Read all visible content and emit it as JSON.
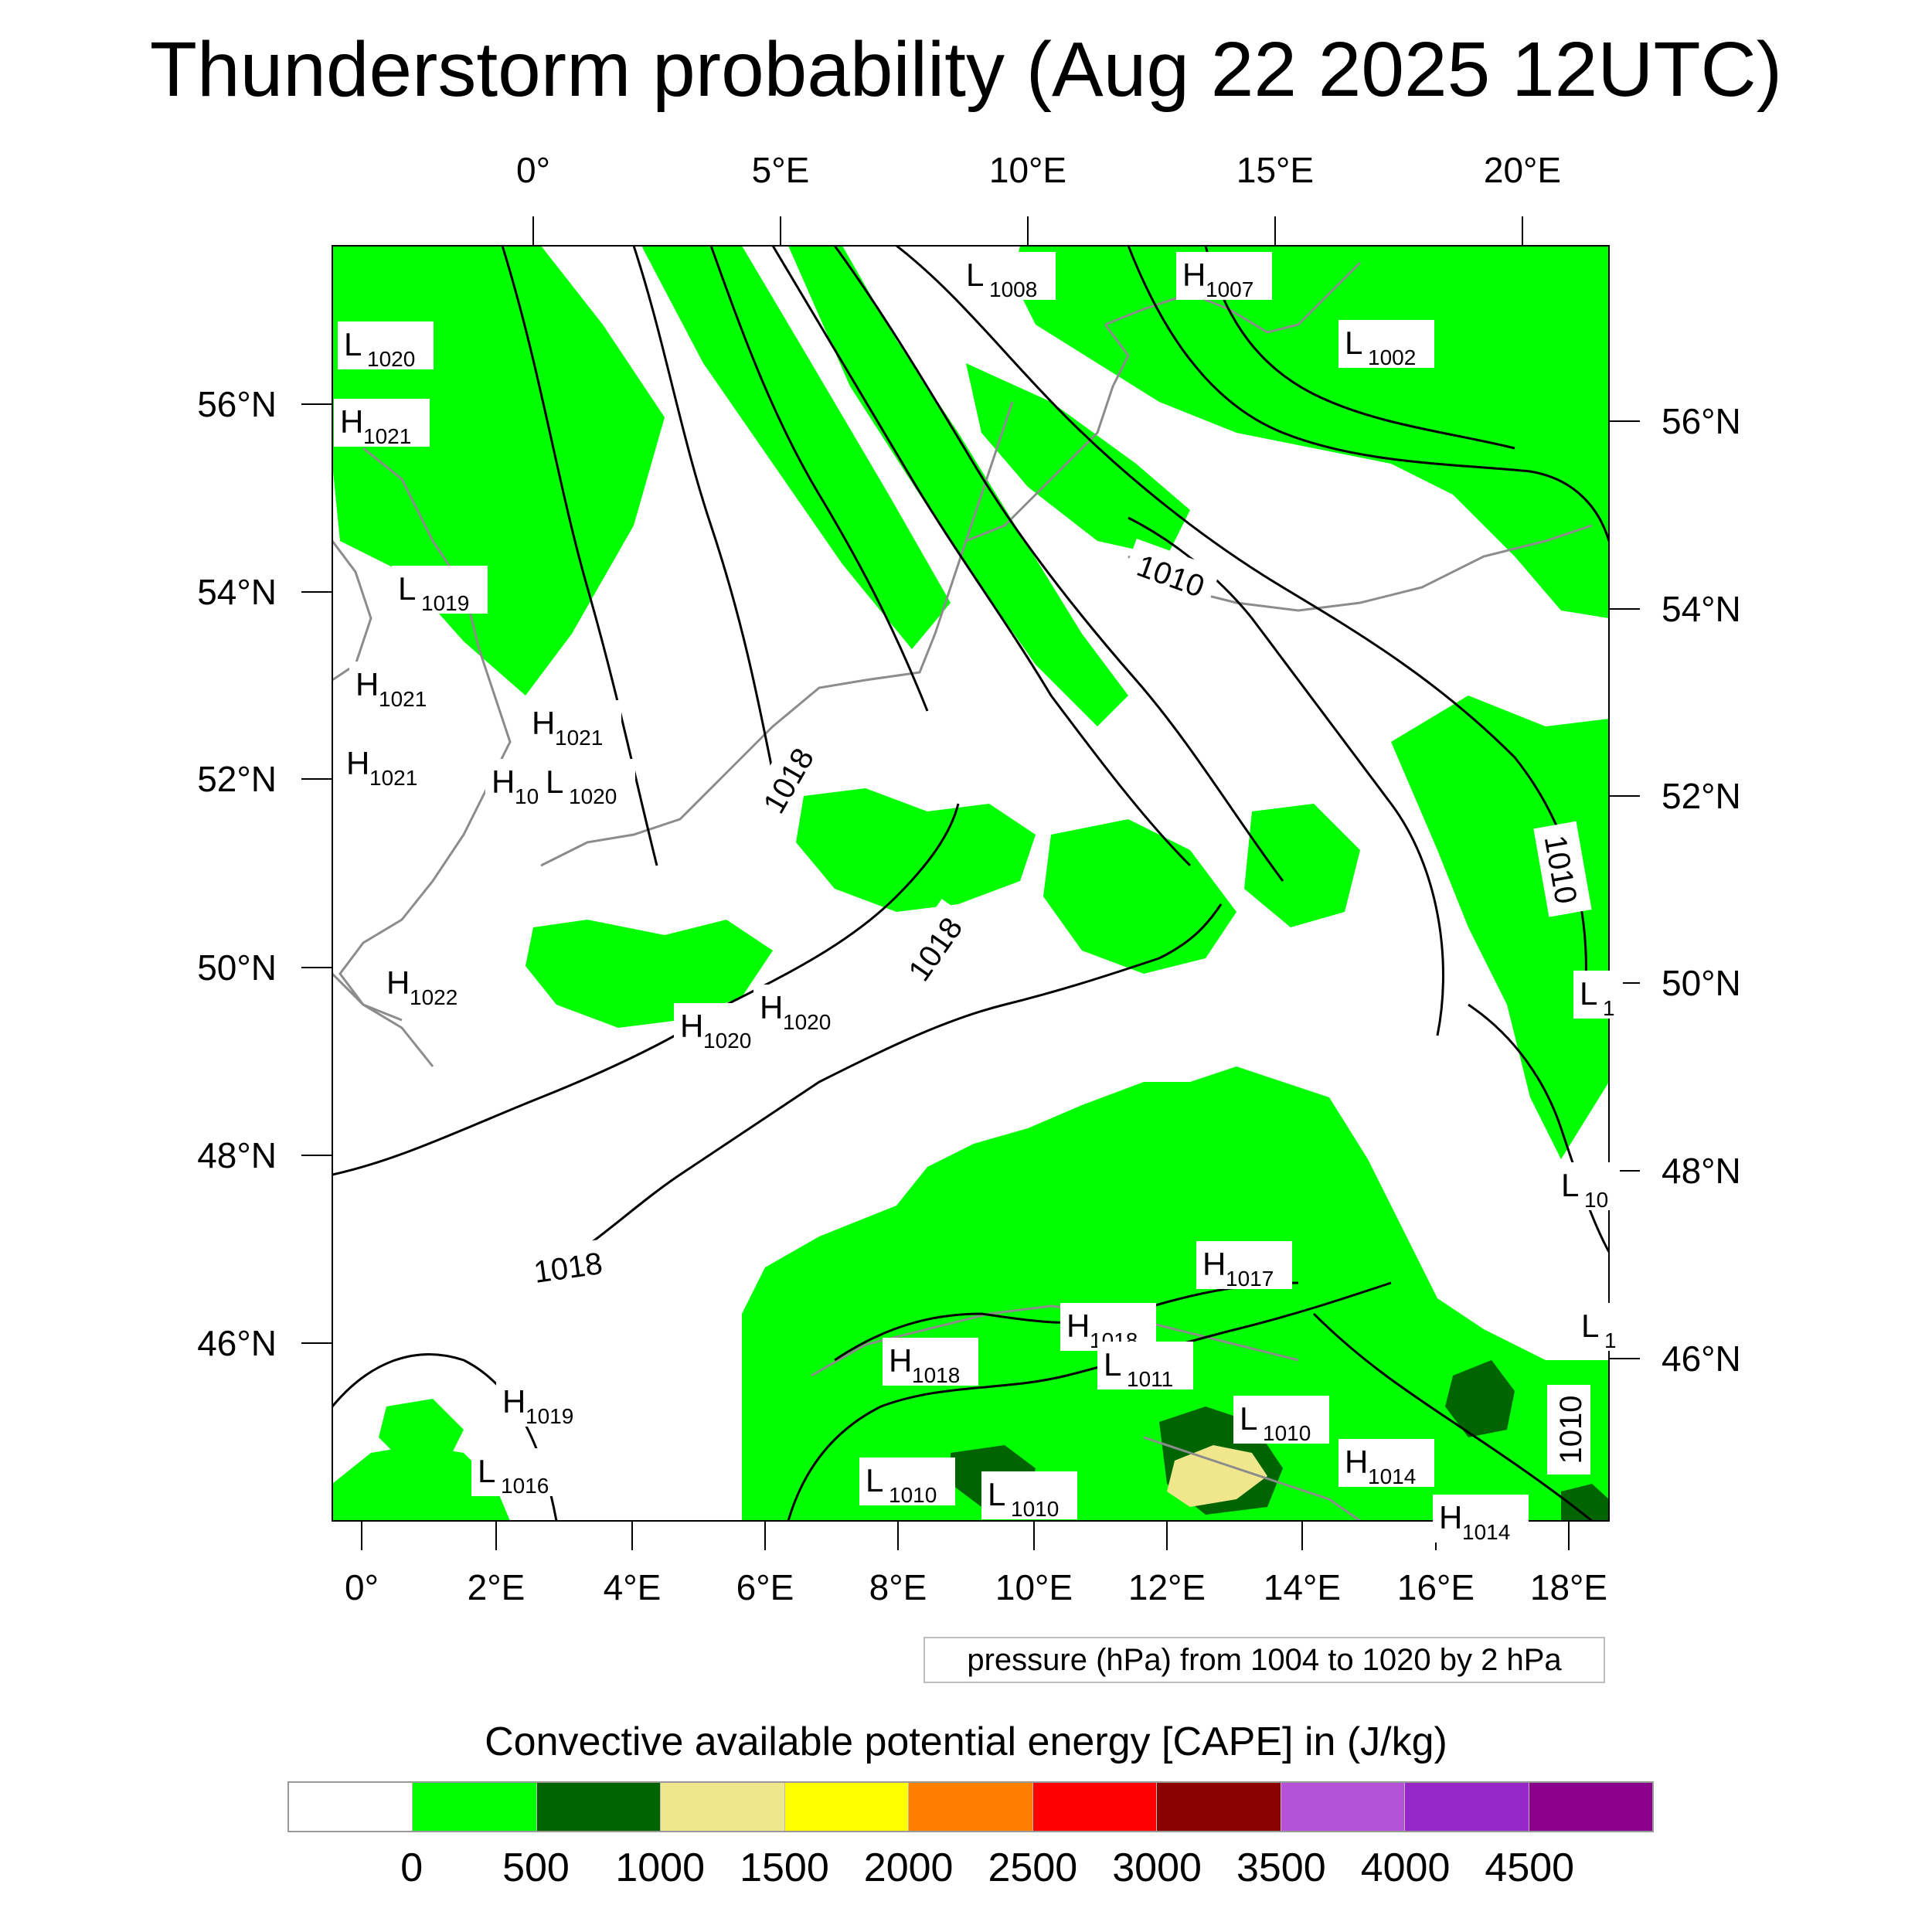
{
  "title": "Thunderstorm probability (Aug 22 2025 12UTC)",
  "map": {
    "top_lon_labels": [
      "0°",
      "5°E",
      "10°E",
      "15°E",
      "20°E"
    ],
    "left_lat_labels": [
      "56°N",
      "54°N",
      "52°N",
      "50°N",
      "48°N",
      "46°N"
    ],
    "right_lat_labels": [
      "56°N",
      "54°N",
      "52°N",
      "50°N",
      "48°N",
      "46°N"
    ],
    "bottom_lon_labels": [
      "0°",
      "2°E",
      "4°E",
      "6°E",
      "8°E",
      "10°E",
      "12°E",
      "14°E",
      "16°E",
      "18°E"
    ],
    "pressure_centers": [
      {
        "kind": "L",
        "value": "1008"
      },
      {
        "kind": "H",
        "value": "1007"
      },
      {
        "kind": "L",
        "value": "1002"
      },
      {
        "kind": "L",
        "value": "1020"
      },
      {
        "kind": "H",
        "value": "1021"
      },
      {
        "kind": "L",
        "value": "1019"
      },
      {
        "kind": "H",
        "value": "1021"
      },
      {
        "kind": "H",
        "value": "1021"
      },
      {
        "kind": "H",
        "value": "1021"
      },
      {
        "kind": "H",
        "value": "10:"
      },
      {
        "kind": "L",
        "value": "1020"
      },
      {
        "kind": "H",
        "value": "1022"
      },
      {
        "kind": "H",
        "value": "1020"
      },
      {
        "kind": "H",
        "value": "1020"
      },
      {
        "kind": "H",
        "value": "1017"
      },
      {
        "kind": "H",
        "value": "1018"
      },
      {
        "kind": "L",
        "value": "1011"
      },
      {
        "kind": "H",
        "value": "1018"
      },
      {
        "kind": "H",
        "value": "1019"
      },
      {
        "kind": "L",
        "value": "1016"
      },
      {
        "kind": "L",
        "value": "1010"
      },
      {
        "kind": "L",
        "value": "1010"
      },
      {
        "kind": "L",
        "value": "1010"
      },
      {
        "kind": "H",
        "value": "1014"
      },
      {
        "kind": "H",
        "value": "1014"
      },
      {
        "kind": "L",
        "value": "1"
      },
      {
        "kind": "L",
        "value": "10"
      },
      {
        "kind": "L",
        "value": "1"
      }
    ],
    "contour_labels": [
      "1010",
      "1018",
      "1018",
      "1018",
      "1010",
      "1010"
    ],
    "colors": {
      "cape_0_500": "#00ff00",
      "cape_500_1000": "#006400",
      "cape_1000_1500": "#f0e68c",
      "isobar": "#000000",
      "coastline": "#8c8c8c"
    }
  },
  "pressure_note": "pressure (hPa) from 1004 to 1020 by 2 hPa",
  "colorbar": {
    "title": "Convective available potential energy [CAPE] in (J/kg)",
    "colors": [
      "#ffffff",
      "#00ff00",
      "#006400",
      "#f0e68c",
      "#ffff00",
      "#ff8000",
      "#ff0000",
      "#8b0000",
      "#b452d8",
      "#9628c8",
      "#8b008b"
    ],
    "labels": [
      "0",
      "500",
      "1000",
      "1500",
      "2000",
      "2500",
      "3000",
      "3500",
      "4000",
      "4500"
    ]
  }
}
